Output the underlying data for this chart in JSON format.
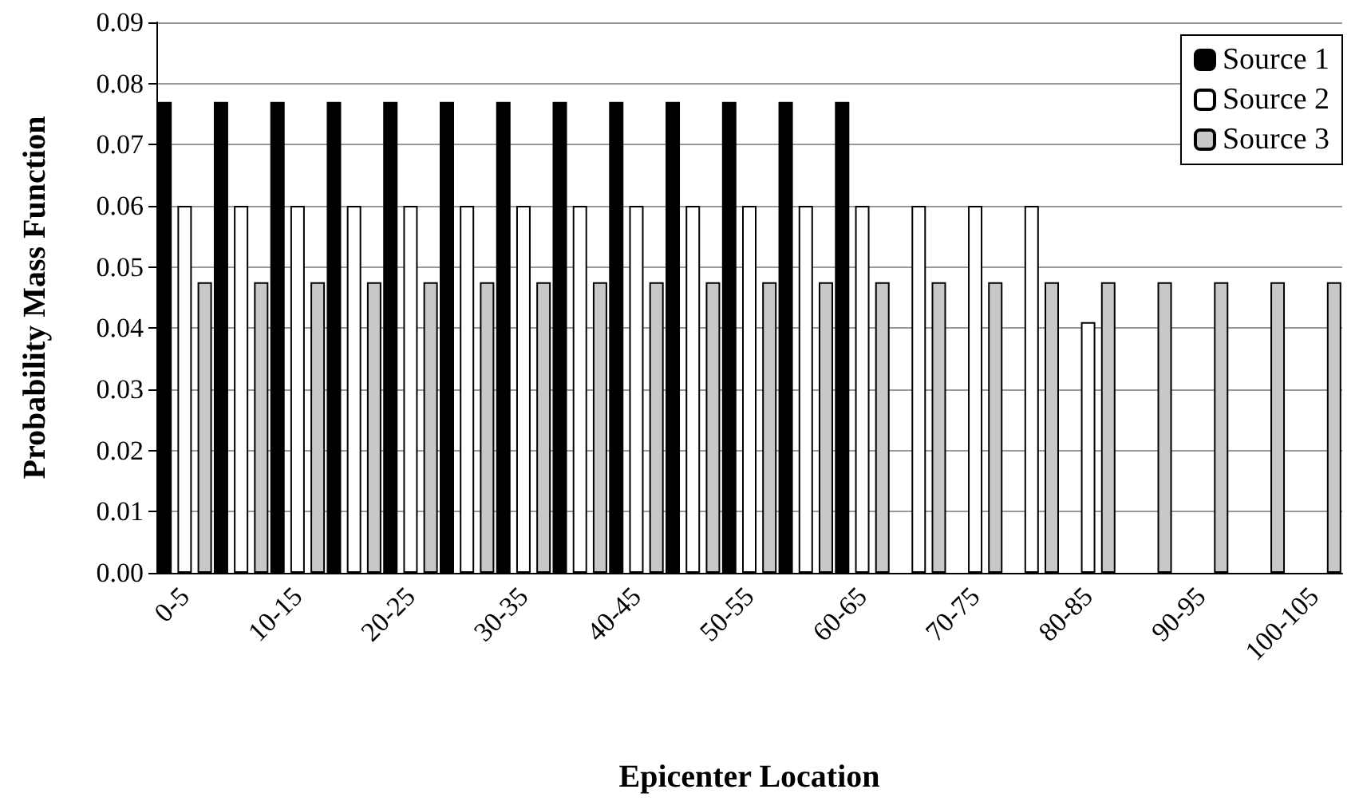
{
  "chart_data": {
    "type": "bar",
    "xlabel": "Epicenter Location",
    "ylabel": "Probability Mass Function",
    "categories": [
      "0-5",
      null,
      "10-15",
      null,
      "20-25",
      null,
      "30-35",
      null,
      "40-45",
      null,
      "50-55",
      null,
      "60-65",
      null,
      "70-75",
      null,
      "80-85",
      null,
      "90-95",
      null,
      "100-105"
    ],
    "series": [
      {
        "name": "Source 1",
        "color": "#000000",
        "values": [
          0.077,
          0.077,
          0.077,
          0.077,
          0.077,
          0.077,
          0.077,
          0.077,
          0.077,
          0.077,
          0.077,
          0.077,
          0.077,
          null,
          null,
          null,
          null,
          null,
          null,
          null,
          null
        ]
      },
      {
        "name": "Source 2",
        "color": "#ffffff",
        "values": [
          0.06,
          0.06,
          0.06,
          0.06,
          0.06,
          0.06,
          0.06,
          0.06,
          0.06,
          0.06,
          0.06,
          0.06,
          0.06,
          0.06,
          0.06,
          0.06,
          0.041,
          null,
          null,
          null,
          null
        ]
      },
      {
        "name": "Source 3",
        "color": "#c8c8c8",
        "values": [
          0.0475,
          0.0475,
          0.0475,
          0.0475,
          0.0475,
          0.0475,
          0.0475,
          0.0475,
          0.0475,
          0.0475,
          0.0475,
          0.0475,
          0.0475,
          0.0475,
          0.0475,
          0.0475,
          0.0475,
          0.0475,
          0.0475,
          0.0475,
          0.0475
        ]
      }
    ],
    "ylim": [
      0,
      0.09
    ],
    "yticks": [
      {
        "value": 0,
        "label": "0.00"
      },
      {
        "value": 0.01,
        "label": "0.01"
      },
      {
        "value": 0.02,
        "label": "0.02"
      },
      {
        "value": 0.03,
        "label": "0.03"
      },
      {
        "value": 0.04,
        "label": "0.04"
      },
      {
        "value": 0.05,
        "label": "0.05"
      },
      {
        "value": 0.06,
        "label": "0.06"
      },
      {
        "value": 0.07,
        "label": "0.07"
      },
      {
        "value": 0.08,
        "label": "0.08"
      },
      {
        "value": 0.09,
        "label": "0.09"
      }
    ],
    "grid": "y",
    "legend": "top right"
  }
}
